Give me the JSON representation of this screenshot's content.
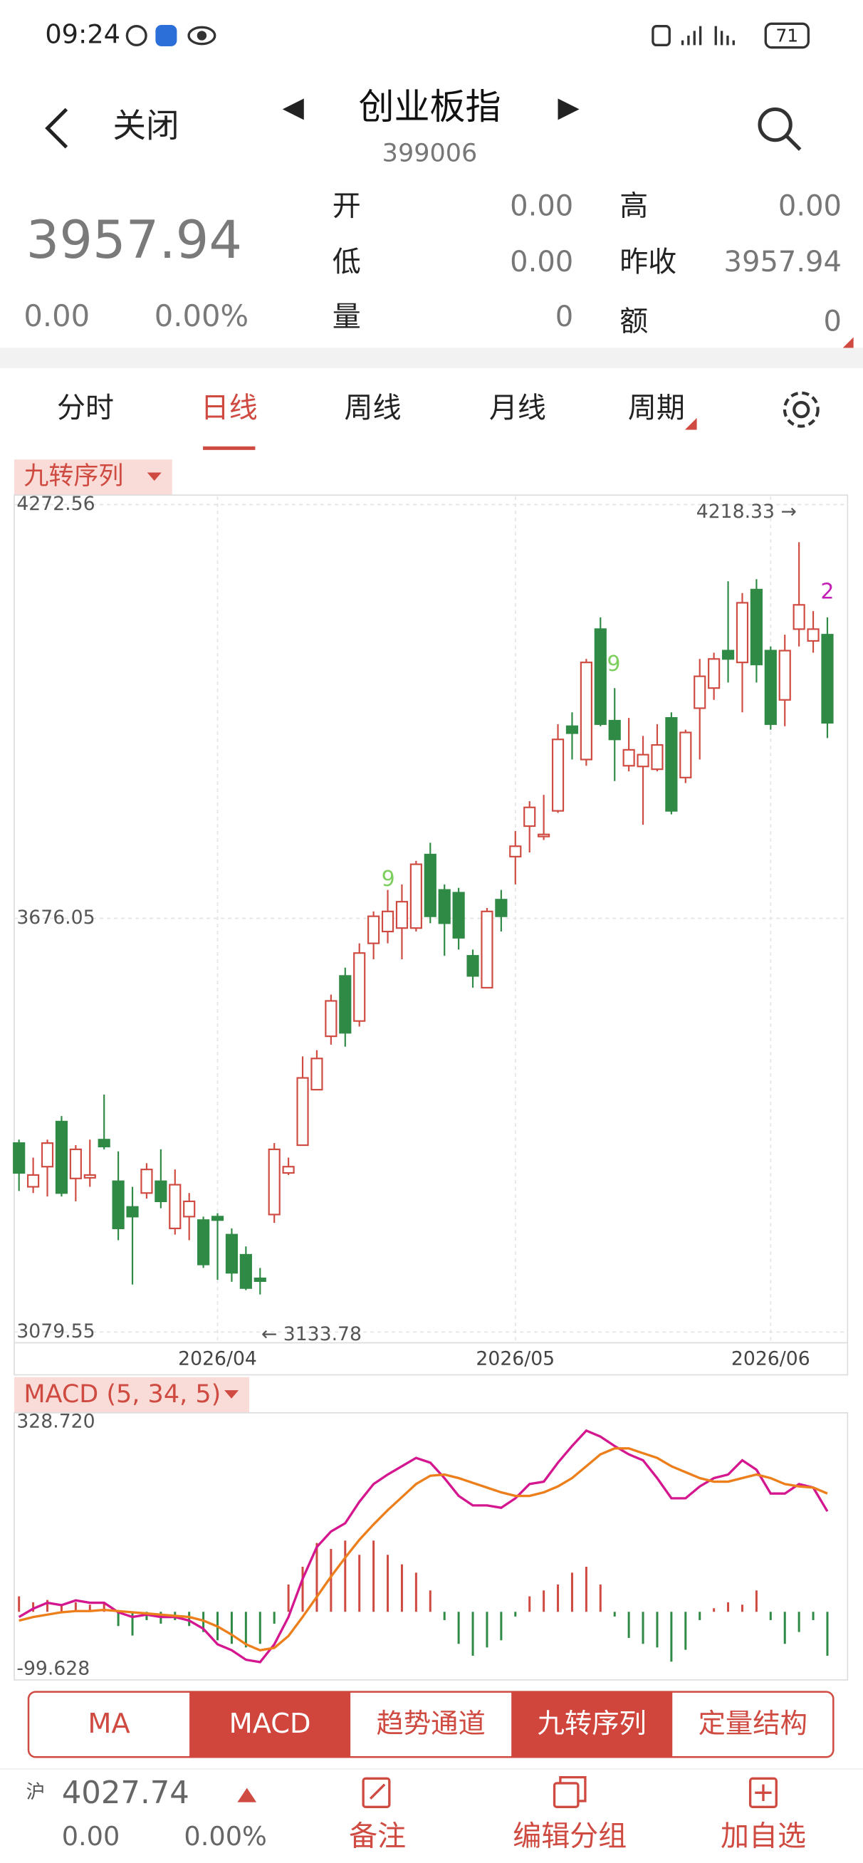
{
  "status_bar": {
    "time": "09:24",
    "battery": "71"
  },
  "header": {
    "back": "关闭",
    "title": "创业板指",
    "code": "399006"
  },
  "quote": {
    "price": "3957.94",
    "change": "0.00",
    "change_pct": "0.00%",
    "fields": [
      {
        "label": "开",
        "value": "0.00"
      },
      {
        "label": "高",
        "value": "0.00"
      },
      {
        "label": "低",
        "value": "0.00"
      },
      {
        "label": "昨收",
        "value": "3957.94"
      },
      {
        "label": "量",
        "value": "0"
      },
      {
        "label": "额",
        "value": "0"
      }
    ]
  },
  "tabs": [
    "分时",
    "日线",
    "周线",
    "月线",
    "周期"
  ],
  "active_tab": 1,
  "chart_data": [
    {
      "type": "candlestick",
      "indicator": "九转序列",
      "categories": [
        null,
        null,
        null,
        null,
        null,
        null,
        null,
        null,
        null,
        null,
        null,
        null,
        null,
        null,
        "2026/04",
        null,
        null,
        null,
        null,
        null,
        null,
        null,
        null,
        null,
        null,
        null,
        null,
        null,
        null,
        null,
        null,
        null,
        null,
        null,
        null,
        "2026/05",
        null,
        null,
        null,
        null,
        null,
        null,
        null,
        null,
        null,
        null,
        null,
        null,
        null,
        null,
        null,
        null,
        null,
        "2026/06",
        null,
        null,
        null,
        null
      ],
      "open": [
        3352,
        3289,
        3318,
        3383,
        3301,
        3302,
        3357,
        3297,
        3260,
        3280,
        3297,
        3229,
        3246,
        3241,
        3246,
        3220,
        3191,
        3157,
        3249,
        3309,
        3349,
        3429,
        3506,
        3593,
        3528,
        3640,
        3657,
        3662,
        3662,
        3768,
        3717,
        3713,
        3622,
        3576,
        3703,
        3765,
        3809,
        3794,
        3831,
        3953,
        3905,
        4093,
        3961,
        3896,
        3895,
        3891,
        3965,
        3879,
        3979,
        4008,
        4062,
        4045,
        4150,
        4062,
        3991,
        4093,
        4076,
        4085
      ],
      "high": [
        3357,
        3331,
        3357,
        3391,
        3349,
        3357,
        3422,
        3340,
        3289,
        3323,
        3343,
        3314,
        3280,
        3246,
        3251,
        3229,
        3203,
        3172,
        3352,
        3331,
        3477,
        3486,
        3566,
        3605,
        3640,
        3686,
        3717,
        3725,
        3759,
        3785,
        3725,
        3720,
        3631,
        3691,
        3717,
        3802,
        3845,
        3854,
        3956,
        3973,
        4050,
        4110,
        4008,
        3965,
        3939,
        3956,
        3973,
        3948,
        4050,
        4059,
        4162,
        4145,
        4165,
        4068,
        4085,
        4218.33,
        4119,
        4110
      ],
      "low": [
        3283,
        3280,
        3275,
        3275,
        3268,
        3289,
        3343,
        3212,
        3148,
        3272,
        3258,
        3220,
        3212,
        3172,
        3155,
        3152,
        3140,
        3133.78,
        3237,
        3306,
        3349,
        3429,
        3494,
        3491,
        3520,
        3617,
        3640,
        3617,
        3657,
        3669,
        3622,
        3631,
        3576,
        3576,
        3657,
        3725,
        3771,
        3789,
        3828,
        3905,
        3896,
        3953,
        3874,
        3888,
        3811,
        3888,
        3826,
        3871,
        3905,
        3991,
        4016,
        3973,
        4016,
        3948,
        3953,
        4068,
        4059,
        3936
      ],
      "close": [
        3309,
        3306,
        3352,
        3280,
        3343,
        3306,
        3347,
        3229,
        3246,
        3314,
        3268,
        3292,
        3268,
        3177,
        3241,
        3165,
        3143,
        3153,
        3343,
        3318,
        3446,
        3474,
        3557,
        3511,
        3626,
        3679,
        3686,
        3700,
        3754,
        3679,
        3669,
        3648,
        3593,
        3686,
        3679,
        3780,
        3836,
        3797,
        3934,
        3943,
        4045,
        3956,
        3934,
        3919,
        3912,
        3926,
        3831,
        3944,
        4025,
        4050,
        4050,
        4131,
        4042,
        3956,
        4062,
        4128,
        4093,
        3957.94
      ],
      "ylim": [
        3079.55,
        4272.56
      ],
      "yticks": [
        3079.55,
        3676.05,
        4272.56
      ],
      "grid": true,
      "high_label": "4218.33 →",
      "low_label": "← 3133.78",
      "annotations": [
        "9",
        "9",
        "2"
      ],
      "up_color": "#cf4a40",
      "down_color": "#2f8a45"
    },
    {
      "type": "macd",
      "title": "MACD (5, 34, 5)",
      "ylim": [
        -99.628,
        328.72
      ],
      "yticks": [
        {
          "value": 328.72,
          "label": "328.720"
        },
        -99.628
      ],
      "series": [
        {
          "color": "#d4168f",
          "values": [
            -9,
            5.5,
            15.7,
            11.6,
            19.9,
            15.7,
            15.7,
            -0.7,
            -9,
            -4.8,
            -9,
            -9,
            -15.1,
            -29.5,
            -56.3,
            -66.6,
            -83.1,
            -87.2,
            -56.3,
            -9,
            56.9,
            112.5,
            139.3,
            153.7,
            190.8,
            221.6,
            238.1,
            252.5,
            266.9,
            258.7,
            231.9,
            201.1,
            184.6,
            184.6,
            180.5,
            196.9,
            221.6,
            225.8,
            258.7,
            287.5,
            314.3,
            304,
            287.5,
            273.1,
            262.8,
            231.9,
            196.9,
            196.9,
            217.5,
            231.9,
            238.1,
            262.8,
            246.4,
            205.2,
            205.2,
            221.6,
            215.5,
            174.3
          ]
        },
        {
          "color": "#ec7f1c",
          "values": [
            -15.1,
            -9,
            -4.8,
            -0.7,
            1.3,
            1.3,
            3.4,
            1.3,
            -0.7,
            -2.8,
            -4.8,
            -6.9,
            -9,
            -15.1,
            -25.4,
            -39.8,
            -56.3,
            -66.6,
            -62.5,
            -41.9,
            -9,
            26,
            61,
            94,
            124.9,
            151.6,
            176.3,
            199,
            221.6,
            236.1,
            238.1,
            231.9,
            223.7,
            215.5,
            207.3,
            201.1,
            201.1,
            207.3,
            217.5,
            231.9,
            252.5,
            273.1,
            283.4,
            283.4,
            275.2,
            266.9,
            252.5,
            242.2,
            231.9,
            225.8,
            225.8,
            231.9,
            238.1,
            231.9,
            221.6,
            217.5,
            215.5,
            205.2
          ]
        }
      ],
      "histogram": {
        "values": [
          26.8,
          16.5,
          20.6,
          12.4,
          16.5,
          12.4,
          16.5,
          -24.7,
          -41.2,
          -14.4,
          -20.6,
          -14.4,
          -24.7,
          -35,
          -49.4,
          -55.6,
          -61.8,
          -55.6,
          -20.6,
          47.4,
          78.2,
          119.4,
          109.1,
          123.5,
          98.8,
          123.5,
          98.8,
          82.4,
          67.9,
          37.1,
          -14.4,
          -55.6,
          -76.2,
          -61.8,
          -49.4,
          -8.2,
          26.8,
          37.1,
          47.4,
          67.9,
          78.2,
          47.4,
          -8.2,
          -45.3,
          -55.6,
          -61.8,
          -86.5,
          -65.9,
          -14.4,
          6.2,
          16.5,
          12.4,
          37.1,
          -14.4,
          -55.6,
          -35,
          -14.4,
          -76.2
        ]
      },
      "up_color": "#cf4a40",
      "down_color": "#2f8a45"
    }
  ],
  "indicator_buttons": [
    "MA",
    "MACD",
    "趋势通道",
    "九转序列",
    "定量结构"
  ],
  "active_buttons": [
    1,
    3
  ],
  "footer": {
    "market": "沪",
    "index_price": "4027.74",
    "change": "0.00",
    "change_pct": "0.00%",
    "actions": [
      "备注",
      "编辑分组",
      "加自选"
    ]
  }
}
